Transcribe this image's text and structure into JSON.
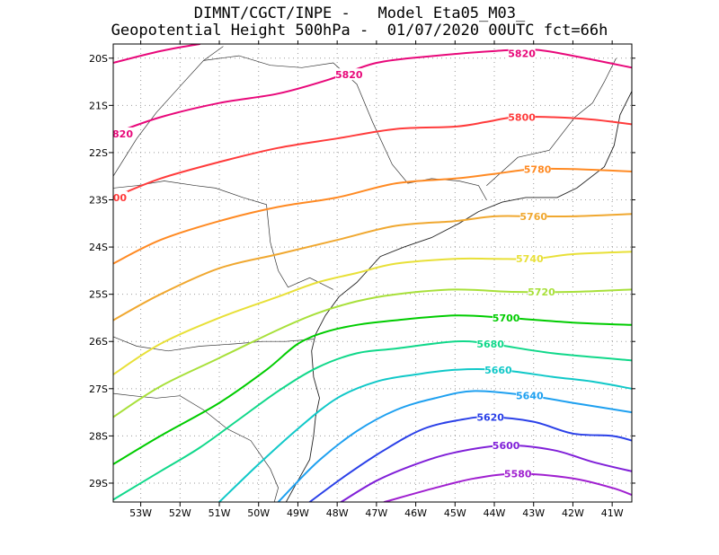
{
  "title": {
    "line1": "DIMNT/CGCT/INPE -   Model Eta05_M03_",
    "line2": "Geopotential Height 500hPa -  01/07/2020 00UTC fct=66h"
  },
  "chart_data": {
    "type": "contour-map",
    "variable": "Geopotential Height 500hPa",
    "units": "gpm",
    "xlim": [
      -53.7,
      -40.5
    ],
    "ylim": [
      -29.4,
      -19.7
    ],
    "x_ticks": [
      -53,
      -52,
      -51,
      -50,
      -49,
      -48,
      -47,
      -46,
      -45,
      -44,
      -43,
      -42,
      -41
    ],
    "x_tick_labels": [
      "53W",
      "52W",
      "51W",
      "50W",
      "49W",
      "48W",
      "47W",
      "46W",
      "45W",
      "44W",
      "43W",
      "42W",
      "41W"
    ],
    "y_ticks": [
      -20,
      -21,
      -22,
      -23,
      -24,
      -25,
      -26,
      -27,
      -28,
      -29
    ],
    "y_tick_labels": [
      "20S",
      "21S",
      "22S",
      "23S",
      "24S",
      "25S",
      "26S",
      "27S",
      "28S",
      "29S"
    ],
    "grid": true,
    "contours": [
      {
        "level": 5820,
        "color": "#e8087a",
        "label_lon": -43.3,
        "label_lat": -19.9,
        "points": [
          [
            -53.7,
            -20.1
          ],
          [
            -52.5,
            -19.85
          ],
          [
            -51.5,
            -19.7
          ]
        ]
      },
      {
        "level": 5820,
        "color": "#e8087a",
        "label_lon": -47.7,
        "label_lat": -20.35,
        "points": [
          [
            -53.7,
            -21.6
          ],
          [
            -52.5,
            -21.25
          ],
          [
            -51.0,
            -20.95
          ],
          [
            -49.5,
            -20.75
          ],
          [
            -48.2,
            -20.45
          ],
          [
            -47.0,
            -20.1
          ],
          [
            -45.5,
            -19.95
          ],
          [
            -44.0,
            -19.85
          ],
          [
            -43.0,
            -19.82
          ],
          [
            -42.0,
            -19.95
          ],
          [
            -40.5,
            -20.2
          ]
        ]
      },
      {
        "level": 5800,
        "color": "#ff3b3b",
        "label_lon": -43.3,
        "label_lat": -21.25,
        "points": [
          [
            -53.7,
            -22.95
          ],
          [
            -52.5,
            -22.55
          ],
          [
            -51.0,
            -22.2
          ],
          [
            -49.5,
            -21.9
          ],
          [
            -48.0,
            -21.7
          ],
          [
            -46.5,
            -21.5
          ],
          [
            -45.0,
            -21.45
          ],
          [
            -44.2,
            -21.35
          ],
          [
            -43.5,
            -21.25
          ],
          [
            -42.5,
            -21.25
          ],
          [
            -41.5,
            -21.3
          ],
          [
            -40.5,
            -21.4
          ]
        ]
      },
      {
        "level": 5780,
        "color": "#ff8a23",
        "label_lon": -42.9,
        "label_lat": -22.35,
        "points": [
          [
            -53.7,
            -24.35
          ],
          [
            -52.5,
            -23.85
          ],
          [
            -51.0,
            -23.45
          ],
          [
            -49.5,
            -23.15
          ],
          [
            -48.0,
            -22.95
          ],
          [
            -46.5,
            -22.65
          ],
          [
            -45.0,
            -22.55
          ],
          [
            -44.0,
            -22.45
          ],
          [
            -43.0,
            -22.35
          ],
          [
            -42.0,
            -22.35
          ],
          [
            -40.5,
            -22.4
          ]
        ]
      },
      {
        "level": 5760,
        "color": "#f0a830",
        "label_lon": -43.0,
        "label_lat": -23.35,
        "points": [
          [
            -53.7,
            -25.55
          ],
          [
            -52.5,
            -25.0
          ],
          [
            -51.0,
            -24.45
          ],
          [
            -49.5,
            -24.15
          ],
          [
            -48.0,
            -23.85
          ],
          [
            -46.5,
            -23.55
          ],
          [
            -45.0,
            -23.45
          ],
          [
            -44.0,
            -23.35
          ],
          [
            -43.0,
            -23.35
          ],
          [
            -42.0,
            -23.35
          ],
          [
            -40.5,
            -23.3
          ]
        ]
      },
      {
        "level": 5740,
        "color": "#e8e038",
        "label_lon": -43.1,
        "label_lat": -24.25,
        "points": [
          [
            -53.7,
            -26.7
          ],
          [
            -52.5,
            -26.05
          ],
          [
            -51.0,
            -25.5
          ],
          [
            -49.5,
            -25.05
          ],
          [
            -48.5,
            -24.75
          ],
          [
            -47.5,
            -24.55
          ],
          [
            -46.5,
            -24.35
          ],
          [
            -45.0,
            -24.25
          ],
          [
            -44.0,
            -24.25
          ],
          [
            -43.0,
            -24.25
          ],
          [
            -42.0,
            -24.15
          ],
          [
            -40.5,
            -24.1
          ]
        ]
      },
      {
        "level": 5720,
        "color": "#a8e03a",
        "label_lon": -42.8,
        "label_lat": -24.95,
        "points": [
          [
            -53.7,
            -27.6
          ],
          [
            -52.5,
            -26.95
          ],
          [
            -51.0,
            -26.35
          ],
          [
            -49.5,
            -25.75
          ],
          [
            -48.5,
            -25.4
          ],
          [
            -47.5,
            -25.15
          ],
          [
            -46.5,
            -25.0
          ],
          [
            -45.0,
            -24.9
          ],
          [
            -43.5,
            -24.95
          ],
          [
            -42.0,
            -24.95
          ],
          [
            -40.5,
            -24.9
          ]
        ]
      },
      {
        "level": 5700,
        "color": "#00cc00",
        "label_lon": -43.7,
        "label_lat": -25.5,
        "points": [
          [
            -53.7,
            -28.6
          ],
          [
            -52.5,
            -28.0
          ],
          [
            -51.0,
            -27.3
          ],
          [
            -49.8,
            -26.6
          ],
          [
            -49.0,
            -26.05
          ],
          [
            -48.3,
            -25.8
          ],
          [
            -47.5,
            -25.65
          ],
          [
            -46.5,
            -25.55
          ],
          [
            -45.0,
            -25.45
          ],
          [
            -43.7,
            -25.5
          ],
          [
            -42.0,
            -25.6
          ],
          [
            -40.5,
            -25.65
          ]
        ]
      },
      {
        "level": 5680,
        "color": "#10d88a",
        "label_lon": -44.1,
        "label_lat": -26.05,
        "points": [
          [
            -53.7,
            -29.35
          ],
          [
            -52.5,
            -28.75
          ],
          [
            -51.5,
            -28.25
          ],
          [
            -50.5,
            -27.65
          ],
          [
            -49.5,
            -27.05
          ],
          [
            -48.5,
            -26.55
          ],
          [
            -47.5,
            -26.25
          ],
          [
            -46.5,
            -26.15
          ],
          [
            -45.0,
            -26.0
          ],
          [
            -44.1,
            -26.05
          ],
          [
            -42.5,
            -26.25
          ],
          [
            -40.5,
            -26.4
          ]
        ]
      },
      {
        "level": 5660,
        "color": "#10c8c8",
        "label_lon": -43.9,
        "label_lat": -26.6,
        "points": [
          [
            -51.0,
            -29.4
          ],
          [
            -50.0,
            -28.6
          ],
          [
            -49.0,
            -27.85
          ],
          [
            -48.0,
            -27.2
          ],
          [
            -47.0,
            -26.85
          ],
          [
            -46.0,
            -26.7
          ],
          [
            -45.0,
            -26.6
          ],
          [
            -43.9,
            -26.6
          ],
          [
            -42.5,
            -26.75
          ],
          [
            -41.5,
            -26.85
          ],
          [
            -40.5,
            -27.0
          ]
        ]
      },
      {
        "level": 5640,
        "color": "#1ea0f0",
        "label_lon": -43.1,
        "label_lat": -27.15,
        "points": [
          [
            -49.5,
            -29.4
          ],
          [
            -48.5,
            -28.55
          ],
          [
            -47.5,
            -27.9
          ],
          [
            -46.5,
            -27.45
          ],
          [
            -45.5,
            -27.2
          ],
          [
            -44.5,
            -27.05
          ],
          [
            -43.1,
            -27.15
          ],
          [
            -42.0,
            -27.3
          ],
          [
            -40.5,
            -27.5
          ]
        ]
      },
      {
        "level": 5620,
        "color": "#2a40e8",
        "label_lon": -44.1,
        "label_lat": -27.6,
        "points": [
          [
            -48.7,
            -29.4
          ],
          [
            -47.8,
            -28.85
          ],
          [
            -46.8,
            -28.3
          ],
          [
            -45.8,
            -27.85
          ],
          [
            -44.8,
            -27.65
          ],
          [
            -44.1,
            -27.6
          ],
          [
            -43.0,
            -27.7
          ],
          [
            -42.0,
            -27.95
          ],
          [
            -41.0,
            -28.0
          ],
          [
            -40.5,
            -28.1
          ]
        ]
      },
      {
        "level": 5600,
        "color": "#8020d8",
        "label_lon": -43.7,
        "label_lat": -28.2,
        "points": [
          [
            -47.9,
            -29.4
          ],
          [
            -47.0,
            -28.95
          ],
          [
            -46.0,
            -28.6
          ],
          [
            -45.0,
            -28.35
          ],
          [
            -43.7,
            -28.2
          ],
          [
            -42.5,
            -28.3
          ],
          [
            -41.5,
            -28.55
          ],
          [
            -40.5,
            -28.75
          ]
        ]
      },
      {
        "level": 5580,
        "color": "#a020d0",
        "label_lon": -43.4,
        "label_lat": -28.8,
        "points": [
          [
            -46.8,
            -29.4
          ],
          [
            -45.5,
            -29.1
          ],
          [
            -44.5,
            -28.9
          ],
          [
            -43.4,
            -28.8
          ],
          [
            -42.0,
            -28.9
          ],
          [
            -41.0,
            -29.1
          ],
          [
            -40.5,
            -29.25
          ]
        ]
      }
    ],
    "coastline": [
      [
        -49.3,
        -29.4
      ],
      [
        -49.0,
        -28.95
      ],
      [
        -48.7,
        -28.5
      ],
      [
        -48.6,
        -28.0
      ],
      [
        -48.55,
        -27.6
      ],
      [
        -48.45,
        -27.2
      ],
      [
        -48.6,
        -26.75
      ],
      [
        -48.65,
        -26.2
      ],
      [
        -48.55,
        -25.85
      ],
      [
        -48.3,
        -25.45
      ],
      [
        -47.95,
        -25.05
      ],
      [
        -47.5,
        -24.75
      ],
      [
        -46.9,
        -24.2
      ],
      [
        -46.3,
        -24.0
      ],
      [
        -45.6,
        -23.8
      ],
      [
        -44.9,
        -23.5
      ],
      [
        -44.4,
        -23.25
      ],
      [
        -43.8,
        -23.05
      ],
      [
        -43.2,
        -22.95
      ],
      [
        -42.4,
        -22.95
      ],
      [
        -41.9,
        -22.75
      ],
      [
        -41.2,
        -22.3
      ],
      [
        -40.95,
        -21.85
      ],
      [
        -40.8,
        -21.2
      ],
      [
        -40.5,
        -20.7
      ]
    ],
    "borders": [
      [
        [
          -53.7,
          -27.1
        ],
        [
          -53.2,
          -27.15
        ],
        [
          -52.6,
          -27.2
        ],
        [
          -52.0,
          -27.15
        ],
        [
          -51.4,
          -27.45
        ],
        [
          -50.8,
          -27.85
        ],
        [
          -50.2,
          -28.1
        ],
        [
          -49.7,
          -28.7
        ],
        [
          -49.5,
          -29.1
        ],
        [
          -49.6,
          -29.4
        ]
      ],
      [
        [
          -53.7,
          -25.9
        ],
        [
          -53.1,
          -26.1
        ],
        [
          -52.3,
          -26.2
        ],
        [
          -51.5,
          -26.1
        ],
        [
          -50.6,
          -26.05
        ],
        [
          -49.9,
          -26.0
        ],
        [
          -49.3,
          -26.0
        ],
        [
          -48.6,
          -25.95
        ]
      ],
      [
        [
          -53.7,
          -22.75
        ],
        [
          -53.1,
          -22.7
        ],
        [
          -52.4,
          -22.6
        ],
        [
          -51.6,
          -22.7
        ],
        [
          -51.1,
          -22.75
        ],
        [
          -50.4,
          -22.95
        ],
        [
          -49.8,
          -23.1
        ],
        [
          -49.7,
          -23.9
        ],
        [
          -49.5,
          -24.5
        ],
        [
          -49.25,
          -24.85
        ],
        [
          -48.7,
          -24.65
        ],
        [
          -48.1,
          -24.9
        ]
      ],
      [
        [
          -53.7,
          -22.5
        ],
        [
          -53.1,
          -21.7
        ],
        [
          -52.6,
          -21.15
        ],
        [
          -51.95,
          -20.55
        ],
        [
          -51.4,
          -20.05
        ],
        [
          -50.9,
          -19.75
        ]
      ],
      [
        [
          -51.4,
          -20.05
        ],
        [
          -50.5,
          -19.95
        ],
        [
          -49.7,
          -20.15
        ],
        [
          -48.9,
          -20.2
        ],
        [
          -48.1,
          -20.1
        ],
        [
          -47.5,
          -20.55
        ],
        [
          -47.1,
          -21.35
        ],
        [
          -46.6,
          -22.25
        ],
        [
          -46.2,
          -22.65
        ],
        [
          -45.6,
          -22.55
        ],
        [
          -44.9,
          -22.6
        ],
        [
          -44.4,
          -22.7
        ],
        [
          -44.2,
          -23.0
        ]
      ],
      [
        [
          -44.2,
          -22.7
        ],
        [
          -43.4,
          -22.1
        ],
        [
          -42.6,
          -21.95
        ],
        [
          -41.95,
          -21.25
        ],
        [
          -41.5,
          -20.95
        ],
        [
          -41.2,
          -20.5
        ],
        [
          -40.9,
          -20.0
        ]
      ]
    ]
  }
}
